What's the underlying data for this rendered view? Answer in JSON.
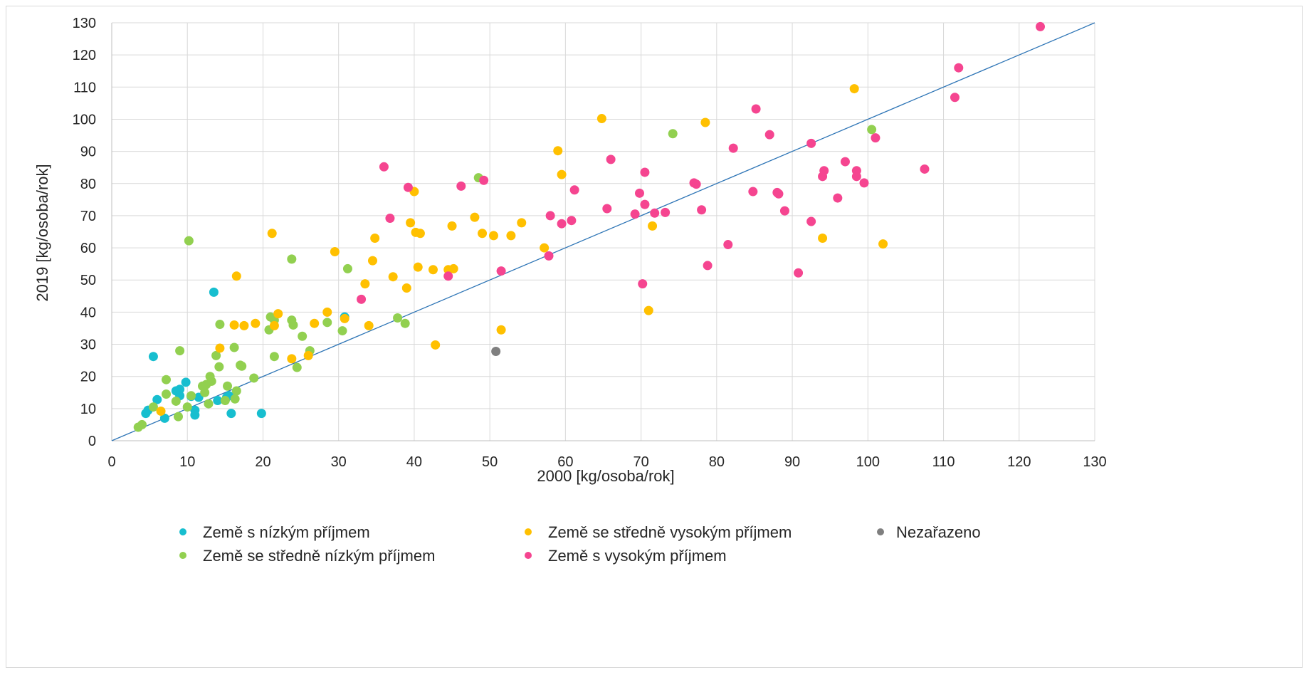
{
  "chart_data": {
    "type": "scatter",
    "xlabel": "2000 [kg/osoba/rok]",
    "ylabel": "2019 [kg/osoba/rok]",
    "xlim": [
      0,
      130
    ],
    "ylim": [
      0,
      130
    ],
    "xticks": [
      "0",
      "10",
      "20",
      "30",
      "40",
      "50",
      "60",
      "70",
      "80",
      "90",
      "100",
      "110",
      "120",
      "130"
    ],
    "yticks": [
      "0",
      "10",
      "20",
      "30",
      "40",
      "50",
      "60",
      "70",
      "80",
      "90",
      "100",
      "110",
      "120",
      "130"
    ],
    "grid": true,
    "legend_position": "bottom",
    "reference_line": {
      "from": [
        0,
        0
      ],
      "to": [
        130,
        130
      ],
      "color": "#2e75b6"
    },
    "series": [
      {
        "name": "Země s nízkým příjmem",
        "color": "#17becf",
        "points": [
          [
            4.5,
            8.5
          ],
          [
            4.8,
            9.5
          ],
          [
            5.5,
            26.2
          ],
          [
            6,
            12.8
          ],
          [
            7,
            7
          ],
          [
            8.5,
            15.5
          ],
          [
            9,
            14
          ],
          [
            9,
            16
          ],
          [
            9.8,
            18.2
          ],
          [
            10.5,
            13.8
          ],
          [
            11,
            9.5
          ],
          [
            11,
            8
          ],
          [
            11.5,
            13.5
          ],
          [
            13.5,
            46.2
          ],
          [
            14,
            12.5
          ],
          [
            15.2,
            13.5
          ],
          [
            15.5,
            14
          ],
          [
            15.8,
            8.5
          ],
          [
            19.8,
            8.5
          ],
          [
            30.8,
            38.5
          ]
        ]
      },
      {
        "name": "Země se středně nízkým příjmem",
        "color": "#92d050",
        "points": [
          [
            3.5,
            4.2
          ],
          [
            4,
            5
          ],
          [
            5.5,
            10.5
          ],
          [
            7.2,
            19
          ],
          [
            7.2,
            14.5
          ],
          [
            8.5,
            12.3
          ],
          [
            8.8,
            7.5
          ],
          [
            9,
            28
          ],
          [
            10,
            10.5
          ],
          [
            10.2,
            62.2
          ],
          [
            10.5,
            14
          ],
          [
            12,
            17
          ],
          [
            12.3,
            15
          ],
          [
            12.5,
            17.5
          ],
          [
            12.8,
            11.5
          ],
          [
            13,
            20
          ],
          [
            13.2,
            18.5
          ],
          [
            13.8,
            26.5
          ],
          [
            14.2,
            23
          ],
          [
            14.3,
            36.2
          ],
          [
            15,
            12.5
          ],
          [
            15.3,
            17
          ],
          [
            16.2,
            29
          ],
          [
            16.3,
            13
          ],
          [
            16.5,
            15.5
          ],
          [
            17,
            23.5
          ],
          [
            17.2,
            23.2
          ],
          [
            18.8,
            19.5
          ],
          [
            20.8,
            34.5
          ],
          [
            21,
            38.5
          ],
          [
            21.5,
            26.2
          ],
          [
            21.5,
            37.5
          ],
          [
            23.8,
            56.5
          ],
          [
            23.8,
            37.5
          ],
          [
            24,
            36
          ],
          [
            24.5,
            22.8
          ],
          [
            25.2,
            32.5
          ],
          [
            26.2,
            28
          ],
          [
            28.5,
            36.8
          ],
          [
            30.5,
            34.2
          ],
          [
            31.2,
            53.5
          ],
          [
            37.8,
            38.2
          ],
          [
            38.8,
            36.5
          ],
          [
            48.5,
            81.8
          ],
          [
            74.2,
            95.5
          ],
          [
            100.5,
            96.8
          ]
        ]
      },
      {
        "name": "Země se středně vysokým příjmem",
        "color": "#ffc000",
        "points": [
          [
            6.5,
            9.2
          ],
          [
            14.3,
            28.8
          ],
          [
            16.2,
            36
          ],
          [
            16.5,
            51.2
          ],
          [
            17.5,
            35.8
          ],
          [
            19,
            36.5
          ],
          [
            21.2,
            64.5
          ],
          [
            21.5,
            35.8
          ],
          [
            22,
            39.5
          ],
          [
            23.8,
            25.5
          ],
          [
            26,
            26.5
          ],
          [
            26.8,
            36.5
          ],
          [
            28.5,
            40
          ],
          [
            29.5,
            58.8
          ],
          [
            30.8,
            38
          ],
          [
            33.5,
            48.8
          ],
          [
            34,
            35.8
          ],
          [
            34.5,
            56
          ],
          [
            34.8,
            63
          ],
          [
            37.2,
            51
          ],
          [
            39,
            47.5
          ],
          [
            39.5,
            67.8
          ],
          [
            40,
            77.5
          ],
          [
            40.2,
            64.8
          ],
          [
            40.5,
            54
          ],
          [
            40.8,
            64.5
          ],
          [
            42.5,
            53.2
          ],
          [
            42.8,
            29.8
          ],
          [
            44.5,
            53.2
          ],
          [
            45,
            66.8
          ],
          [
            45.2,
            53.5
          ],
          [
            48,
            69.5
          ],
          [
            49,
            64.5
          ],
          [
            50.5,
            63.8
          ],
          [
            51.5,
            34.5
          ],
          [
            52.8,
            63.8
          ],
          [
            54.2,
            67.8
          ],
          [
            57.2,
            60
          ],
          [
            59,
            90.2
          ],
          [
            59.5,
            82.8
          ],
          [
            64.8,
            100.2
          ],
          [
            71,
            40.5
          ],
          [
            71.5,
            66.8
          ],
          [
            78.5,
            99
          ],
          [
            94,
            63
          ],
          [
            98.2,
            109.5
          ],
          [
            102,
            61.2
          ]
        ]
      },
      {
        "name": "Země s vysokým příjmem",
        "color": "#f54590",
        "points": [
          [
            33,
            44
          ],
          [
            36,
            85.2
          ],
          [
            36.8,
            69.2
          ],
          [
            39.2,
            78.8
          ],
          [
            44.5,
            51.2
          ],
          [
            46.2,
            79.2
          ],
          [
            49.2,
            81
          ],
          [
            51.5,
            52.8
          ],
          [
            57.8,
            57.5
          ],
          [
            58,
            70
          ],
          [
            59.5,
            67.5
          ],
          [
            60.8,
            68.5
          ],
          [
            61.2,
            78
          ],
          [
            65.5,
            72.2
          ],
          [
            66,
            87.5
          ],
          [
            69.2,
            70.5
          ],
          [
            69.8,
            77
          ],
          [
            70.2,
            48.8
          ],
          [
            70.5,
            73.5
          ],
          [
            70.5,
            83.5
          ],
          [
            71.8,
            70.8
          ],
          [
            73.2,
            71
          ],
          [
            77,
            80.2
          ],
          [
            77.3,
            79.8
          ],
          [
            78,
            71.8
          ],
          [
            78.8,
            54.5
          ],
          [
            81.5,
            61
          ],
          [
            82.2,
            91
          ],
          [
            84.8,
            77.5
          ],
          [
            85.2,
            103.2
          ],
          [
            87,
            95.2
          ],
          [
            88,
            77.2
          ],
          [
            88.2,
            76.8
          ],
          [
            89,
            71.5
          ],
          [
            90.8,
            52.2
          ],
          [
            92.5,
            92.5
          ],
          [
            92.5,
            68.2
          ],
          [
            94,
            82.2
          ],
          [
            94.2,
            84
          ],
          [
            96,
            75.5
          ],
          [
            97,
            86.8
          ],
          [
            98.5,
            84
          ],
          [
            98.5,
            82.2
          ],
          [
            99.5,
            80.2
          ],
          [
            101,
            94.2
          ],
          [
            107.5,
            84.5
          ],
          [
            111.5,
            106.8
          ],
          [
            112,
            116
          ],
          [
            122.8,
            128.8
          ]
        ]
      },
      {
        "name": "Nezařazeno",
        "color": "#7f7f7f",
        "points": [
          [
            50.8,
            27.8
          ]
        ]
      }
    ]
  }
}
